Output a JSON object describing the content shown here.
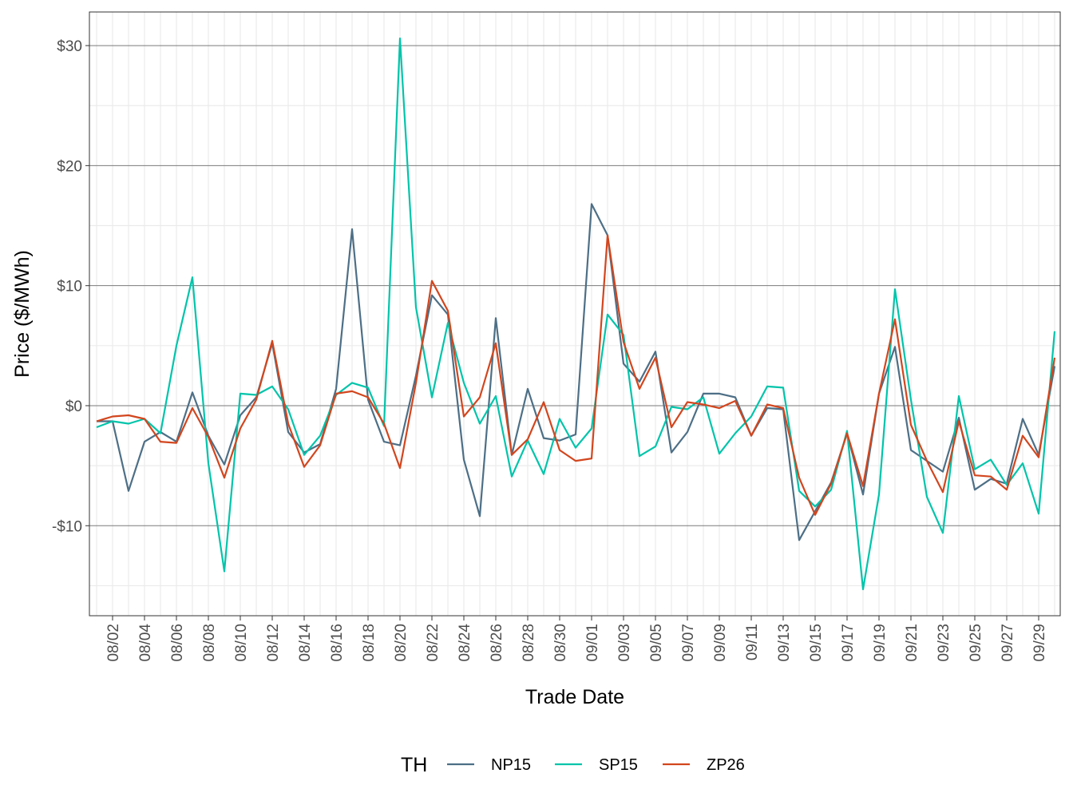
{
  "chart_data": {
    "type": "line",
    "title": "",
    "xlabel": "Trade Date",
    "ylabel": "Price ($/MWh)",
    "ylim": [
      -17.5,
      32.8
    ],
    "y_ticks": [
      -10,
      0,
      10,
      20,
      30
    ],
    "y_tick_labels": [
      "-$10",
      "$0",
      "$10",
      "$20",
      "$30"
    ],
    "x_tick_labels": [
      "08/02",
      "08/04",
      "08/06",
      "08/08",
      "08/10",
      "08/12",
      "08/14",
      "08/16",
      "08/18",
      "08/20",
      "08/22",
      "08/24",
      "08/26",
      "08/28",
      "08/30",
      "09/01",
      "09/03",
      "09/05",
      "09/07",
      "09/09",
      "09/11",
      "09/13",
      "09/15",
      "09/17",
      "09/19",
      "09/21",
      "09/23",
      "09/25",
      "09/27",
      "09/29"
    ],
    "x": [
      "08/01",
      "08/02",
      "08/03",
      "08/04",
      "08/05",
      "08/06",
      "08/07",
      "08/08",
      "08/09",
      "08/10",
      "08/11",
      "08/12",
      "08/13",
      "08/14",
      "08/15",
      "08/16",
      "08/17",
      "08/18",
      "08/19",
      "08/20",
      "08/21",
      "08/22",
      "08/23",
      "08/24",
      "08/25",
      "08/26",
      "08/27",
      "08/28",
      "08/29",
      "08/30",
      "08/31",
      "09/01",
      "09/02",
      "09/03",
      "09/04",
      "09/05",
      "09/06",
      "09/07",
      "09/08",
      "09/09",
      "09/10",
      "09/11",
      "09/12",
      "09/13",
      "09/14",
      "09/15",
      "09/16",
      "09/17",
      "09/18",
      "09/19",
      "09/20",
      "09/21",
      "09/22",
      "09/23",
      "09/24",
      "09/25",
      "09/26",
      "09/27",
      "09/28",
      "09/29",
      "09/30"
    ],
    "grid": true,
    "legend_position": "bottom",
    "legend_title": "TH",
    "series": [
      {
        "name": "NP15",
        "color": "#4d6f86",
        "values": [
          -1.3,
          -1.3,
          -7.1,
          -3.0,
          -2.2,
          -3.0,
          1.1,
          -2.5,
          -4.9,
          -0.8,
          0.7,
          5.2,
          -2.2,
          -3.9,
          -3.2,
          1.4,
          14.7,
          0.5,
          -3.0,
          -3.3,
          2.5,
          9.2,
          7.6,
          -4.5,
          -9.2,
          7.3,
          -4.1,
          1.4,
          -2.7,
          -2.9,
          -2.4,
          16.8,
          14.2,
          3.5,
          2.0,
          4.5,
          -3.9,
          -2.2,
          1.0,
          1.0,
          0.7,
          -2.5,
          -0.2,
          -0.3,
          -11.2,
          -8.8,
          -6.4,
          -2.3,
          -7.4,
          1.0,
          4.9,
          -3.7,
          -4.6,
          -5.5,
          -1.0,
          -7.0,
          -6.1,
          -6.5,
          -1.1,
          -4.1,
          3.3
        ]
      },
      {
        "name": "SP15",
        "color": "#00c4aa",
        "values": [
          -1.8,
          -1.3,
          -1.5,
          -1.1,
          -2.3,
          5.0,
          10.7,
          -4.8,
          -13.8,
          1.0,
          0.9,
          1.6,
          -0.3,
          -4.1,
          -2.5,
          0.9,
          1.9,
          1.5,
          -1.7,
          30.6,
          8.2,
          0.7,
          6.9,
          1.9,
          -1.5,
          0.8,
          -5.9,
          -2.9,
          -5.7,
          -1.1,
          -3.5,
          -1.9,
          7.6,
          5.9,
          -4.2,
          -3.4,
          -0.1,
          -0.3,
          0.7,
          -4.0,
          -2.3,
          -0.9,
          1.6,
          1.5,
          -7.1,
          -8.4,
          -7.0,
          -2.1,
          -15.3,
          -7.4,
          9.7,
          0.5,
          -7.6,
          -10.6,
          0.8,
          -5.3,
          -4.5,
          -6.6,
          -4.8,
          -9.0,
          6.2
        ]
      },
      {
        "name": "ZP26",
        "color": "#d2461e",
        "values": [
          -1.3,
          -0.9,
          -0.8,
          -1.1,
          -3.0,
          -3.1,
          -0.2,
          -2.6,
          -6.0,
          -1.9,
          0.5,
          5.4,
          -1.5,
          -5.1,
          -3.3,
          1.0,
          1.2,
          0.7,
          -1.5,
          -5.2,
          1.9,
          10.4,
          7.9,
          -0.9,
          0.7,
          5.2,
          -4.1,
          -2.8,
          0.3,
          -3.7,
          -4.6,
          -4.4,
          14.2,
          5.3,
          1.4,
          4.0,
          -1.8,
          0.3,
          0.1,
          -0.2,
          0.4,
          -2.5,
          0.1,
          -0.2,
          -6.0,
          -9.1,
          -6.5,
          -2.3,
          -6.7,
          1.0,
          7.2,
          -1.6,
          -4.6,
          -7.2,
          -1.3,
          -5.8,
          -5.9,
          -7.0,
          -2.5,
          -4.3,
          4.0
        ]
      }
    ]
  }
}
